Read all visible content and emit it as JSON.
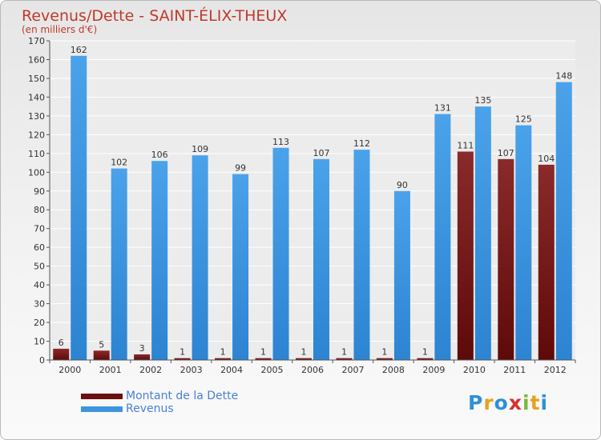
{
  "chart_data": {
    "type": "bar",
    "title": "Revenus/Dette - SAINT-ÉLIX-THEUX",
    "subtitle": "(en milliers d'€)",
    "categories": [
      "2000",
      "2001",
      "2002",
      "2003",
      "2004",
      "2005",
      "2006",
      "2007",
      "2008",
      "2009",
      "2010",
      "2011",
      "2012"
    ],
    "series": [
      {
        "name": "Montant de la Dette",
        "values": [
          6,
          5,
          3,
          1,
          1,
          1,
          1,
          1,
          1,
          1,
          111,
          107,
          104
        ],
        "color": "#7a1c1c"
      },
      {
        "name": "Revenus",
        "values": [
          162,
          102,
          106,
          109,
          99,
          113,
          107,
          112,
          90,
          131,
          135,
          125,
          148
        ],
        "color": "#3d95e0"
      }
    ],
    "ylim": [
      0,
      170
    ],
    "yticks": [
      0,
      10,
      20,
      30,
      40,
      50,
      60,
      70,
      80,
      90,
      100,
      110,
      120,
      130,
      140,
      150,
      160,
      170
    ],
    "grid": true,
    "legend_position": "bottom-left"
  },
  "logo": {
    "letters": [
      "P",
      "r",
      "o",
      "x",
      "i",
      "t",
      "i"
    ],
    "colors": [
      "#2f8fd8",
      "#e8a020",
      "#2f8fd8",
      "#d8302f",
      "#7cb83a",
      "#e8a020",
      "#2f8fd8"
    ]
  }
}
